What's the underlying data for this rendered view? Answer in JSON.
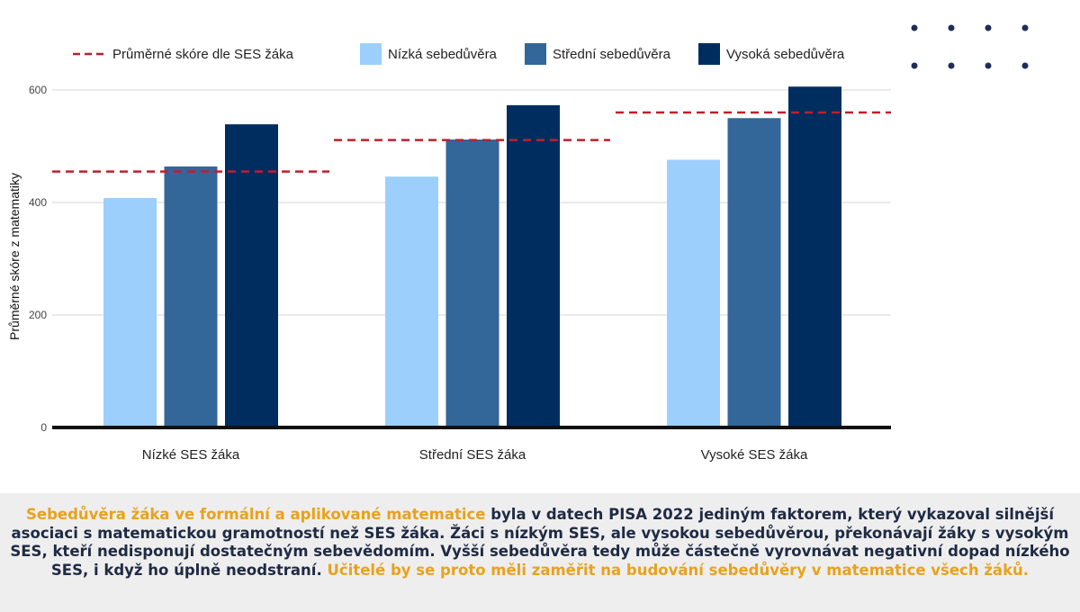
{
  "colors": {
    "low_conf": "#9ccffb",
    "mid_conf": "#336699",
    "high_conf": "#002d5f",
    "ses_avg_line": "#bf1f2b",
    "highlight_text": "#e8a21c",
    "body_text": "#1f2a44",
    "dots": "#1f2d5a"
  },
  "chart_data": {
    "type": "bar",
    "title": "",
    "xlabel": "",
    "ylabel": "Průměrné skóre z matematiky",
    "ylim": [
      0,
      600
    ],
    "yticks": [
      0,
      200,
      400,
      600
    ],
    "grid": true,
    "categories": [
      "Nízké SES žáka",
      "Střední SES žáka",
      "Vysoké SES žáka"
    ],
    "series": [
      {
        "name": "Nízká sebedůvěra",
        "color": "#9ccffb",
        "values": [
          408,
          446,
          476
        ]
      },
      {
        "name": "Střední sebedůvěra",
        "color": "#336699",
        "values": [
          464,
          512,
          550
        ]
      },
      {
        "name": "Vysoká sebedůvěra",
        "color": "#002d5f",
        "values": [
          539,
          573,
          606
        ]
      }
    ],
    "reference_line": {
      "name": "Průměrné skóre dle SES žáka",
      "style": "dashed",
      "color": "#bf1f2b",
      "values": [
        455,
        511,
        560
      ]
    },
    "legend": {
      "placement": "top",
      "entries": [
        "Průměrné skóre dle SES žáka",
        "Nízká sebedůvěra",
        "Střední sebedůvěra",
        "Vysoká sebedůvěra"
      ]
    }
  },
  "caption": {
    "part1_highlight": "Sebedůvěra žáka ve formální a aplikované matematice",
    "part2": " byla v datech PISA 2022 jediným faktorem, který vykazoval silnější asociaci s matematickou gramotností než SES žáka. Žáci s nízkým SES, ale vysokou sebedůvěrou, překonávají žáky s vysokým SES, kteří nedisponují dostatečným sebevědomím. Vyšší sebedůvěra tedy může částečně vyrovnávat negativní dopad nízkého SES, i když ho úplně neodstraní. ",
    "part3_highlight": "Učitelé by se proto měli zaměřit na budování sebedůvěry v matematice všech žáků."
  }
}
